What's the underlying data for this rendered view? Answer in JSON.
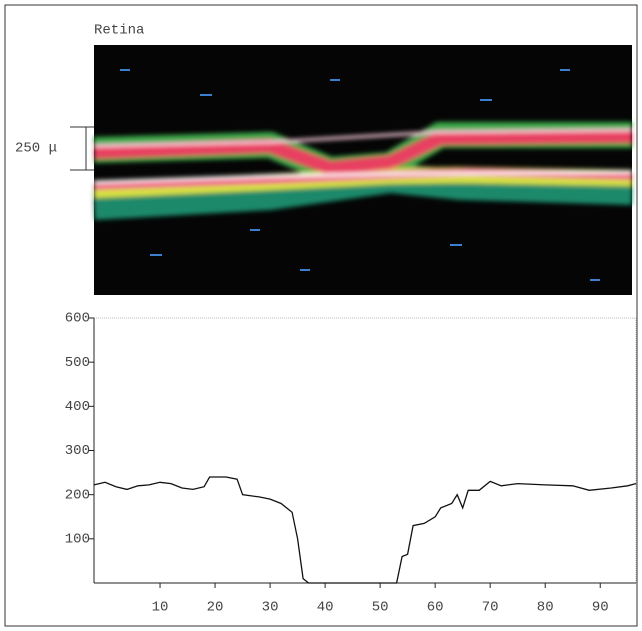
{
  "scan": {
    "title": "Retina",
    "scale_label": "250 μ"
  },
  "chart_data": {
    "type": "line",
    "color": "#111111",
    "x": [
      -2,
      0,
      2,
      4,
      6,
      8,
      10,
      12,
      14,
      16,
      18,
      19,
      22,
      24,
      25,
      28,
      30,
      32,
      34,
      35,
      36,
      37,
      53,
      54,
      55,
      56,
      58,
      60,
      61,
      63,
      64,
      65,
      66,
      68,
      70,
      72,
      75,
      80,
      85,
      88,
      92,
      95,
      96.5
    ],
    "values": [
      222,
      228,
      218,
      212,
      220,
      222,
      228,
      225,
      215,
      212,
      218,
      240,
      240,
      235,
      200,
      195,
      190,
      180,
      160,
      100,
      10,
      0,
      0,
      60,
      65,
      130,
      135,
      150,
      170,
      180,
      200,
      170,
      210,
      210,
      230,
      220,
      225,
      222,
      220,
      210,
      215,
      220,
      225
    ],
    "xlim": [
      -2,
      96.5
    ],
    "ylim": [
      0,
      600
    ],
    "xticks": [
      10,
      20,
      30,
      40,
      50,
      60,
      70,
      80,
      90
    ],
    "yticks": [
      100,
      200,
      300,
      400,
      500,
      600
    ]
  }
}
